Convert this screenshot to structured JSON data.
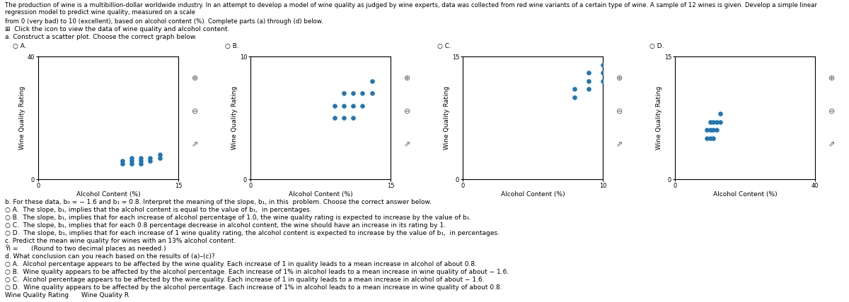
{
  "title": "The production of wine is a multibillion-dollar worldwide industry. In an attempt to develop a model of wine quality as judged by wine experts, data was collected from red wine variants of a certain type of wine. A sample of 12 wines is given. Develop a simple linear regression model to predict wine quality, measured on a scale",
  "subtitle": "from 0 (very bad) to 10 (excellent), based on alcohol content (%). Complete parts (a) through (d) below.",
  "annotations": [
    [
      "⊞  Click the icon to view the data of wine quality and alcohol content."
    ],
    [
      "a. Construct a scatter plot. Choose the correct graph below."
    ],
    [
      "b. For these data, b₀ = − 1.6 and b₁ = 0.8. Interpret the meaning of the slope, b₁, in this  problem. Choose the correct answer below."
    ],
    [
      "○ A.  The slope, b₁, implies that the alcohol content is equal to the value of b₁,  in percentages."
    ],
    [
      "○ B.  The slope, b₁, implies that for each increase of alcohol percentage of 1.0, the wine quality rating is expected to increase by the value of b₁."
    ],
    [
      "○ C.  The slope, b₁, implies that for each 0.8 percentage decrease in alcohol content, the wine should have an increase in its rating by 1."
    ],
    [
      "○ D.  The slope, b₁, implies that for each increase of 1 wine quality rating, the alcohol content is expected to increase by the value of b₁,  in percentages."
    ],
    [
      "c. Predict the mean wine quality for wines with an 13% alcohol content."
    ],
    [
      "Ŷi =",
      "(Round to two decimal places as needed.)"
    ],
    [
      "d. What conclusion can you reach based on the results of (a)–(c)?"
    ],
    [
      "○ A.  Alcohol percentage appears to be affected by the wine quality. Each increase of 1 in quality leads to a mean increase in alcohol of about 0.8."
    ],
    [
      "○ B.  Wine quality appears to be affected by the alcohol percentage. Each increase of 1% in alcohol leads to a mean increase in wine quality of about − 1.6."
    ],
    [
      "○ C.  Alcohol percentage appears to be affected by the wine quality. Each increase of 1 in quality leads to a mean increase in alcohol of about − 1.6."
    ],
    [
      "○ D.  Wine quality appears to be affected by the alcohol percentage. Each increase of 1% in alcohol leads to a mean increase in wine quality of about 0.8."
    ],
    [
      "Wine Quality Rating",
      "Wine Quality R"
    ]
  ],
  "chart_data": [
    {
      "type": "scatter",
      "title": "○ A.",
      "x": [
        9,
        9,
        10,
        10,
        10,
        11,
        11,
        11,
        12,
        12,
        13,
        13
      ],
      "values": [
        5,
        6,
        5,
        6,
        7,
        5,
        6,
        7,
        6,
        7,
        7,
        8
      ],
      "xlabel": "Alcohol Content (%)",
      "ylabel": "Wine Quality Rating",
      "xlim": [
        0,
        15
      ],
      "ylim": [
        0,
        40
      ],
      "xticks": [
        0,
        15
      ],
      "yticks": [
        0,
        40
      ],
      "grid": true,
      "annotations": [
        "⊕",
        "⊖",
        "⇗"
      ]
    },
    {
      "type": "scatter",
      "title": "○ B.",
      "x": [
        9,
        9,
        10,
        10,
        10,
        11,
        11,
        11,
        12,
        12,
        13,
        13
      ],
      "values": [
        5,
        6,
        5,
        6,
        7,
        5,
        6,
        7,
        6,
        7,
        7,
        8
      ],
      "xlabel": "Alcohol Content (%)",
      "ylabel": "Wine Quality Rating",
      "xlim": [
        0,
        15
      ],
      "ylim": [
        0,
        10
      ],
      "xticks": [
        0,
        15
      ],
      "yticks": [
        0,
        10
      ],
      "grid": true,
      "annotations": [
        "⊕",
        "⊖",
        "⇗"
      ]
    },
    {
      "type": "scatter",
      "title": "○ C.",
      "x": [
        8,
        8,
        9,
        9,
        9,
        10,
        10,
        10
      ],
      "values": [
        10,
        11,
        11,
        12,
        13,
        12,
        13,
        14
      ],
      "xlabel": "Alcohol Content (%)",
      "ylabel": "Wine Quality Rating",
      "xlim": [
        0,
        10
      ],
      "ylim": [
        0,
        15
      ],
      "xticks": [
        0,
        10
      ],
      "yticks": [
        0,
        15
      ],
      "grid": true,
      "annotations": [
        "⊕",
        "⊖",
        "⇗"
      ]
    },
    {
      "type": "scatter",
      "title": "○ D.",
      "x": [
        9,
        9,
        10,
        10,
        10,
        11,
        11,
        11,
        12,
        12,
        13,
        13
      ],
      "values": [
        5,
        6,
        5,
        6,
        7,
        5,
        6,
        7,
        6,
        7,
        7,
        8
      ],
      "xlabel": "Alcohol Content (%)",
      "ylabel": "Wine Quality Rating",
      "xlim": [
        0,
        40
      ],
      "ylim": [
        0,
        15
      ],
      "xticks": [
        0,
        40
      ],
      "yticks": [
        0,
        15
      ],
      "grid": true,
      "annotations": [
        "⊕",
        "⊖",
        "⇗"
      ]
    }
  ]
}
